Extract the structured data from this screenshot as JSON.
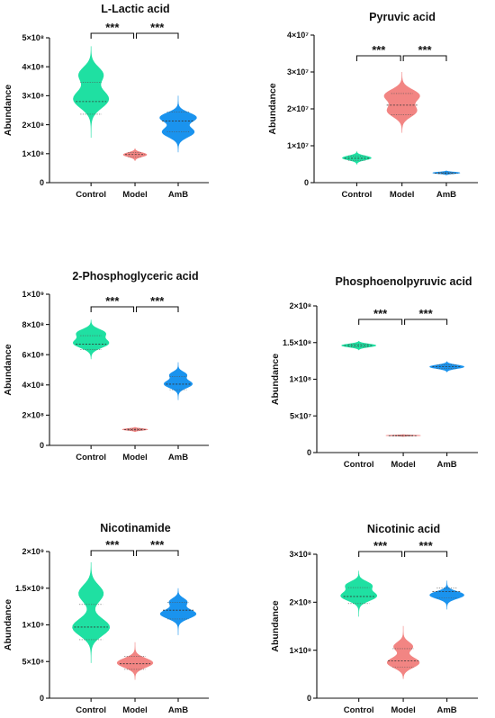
{
  "colors": {
    "control": "#1fe0a2",
    "model": "#f28583",
    "amb": "#1a93ee"
  },
  "chart_data": [
    {
      "type": "violin",
      "title": "L-Lactic acid",
      "ylabel": "Abundance",
      "categories": [
        "Control",
        "Model",
        "AmB"
      ],
      "ylim": [
        0,
        500000000
      ],
      "ticks": [
        "0",
        "1×10⁸",
        "2×10⁸",
        "3×10⁸",
        "4×10⁸",
        "5×10⁸"
      ],
      "tick_values": [
        0,
        100000000,
        200000000,
        300000000,
        400000000,
        500000000
      ],
      "medians": [
        280000000,
        97000000,
        213000000
      ],
      "ranges": [
        [
          155000000,
          470000000
        ],
        [
          75000000,
          118000000
        ],
        [
          105000000,
          300000000
        ]
      ],
      "significance": [
        "***",
        "***"
      ]
    },
    {
      "type": "violin",
      "title": "Pyruvic acid",
      "ylabel": "Abundance",
      "categories": [
        "Control",
        "Model",
        "AmB"
      ],
      "ylim": [
        0,
        40000000
      ],
      "ticks": [
        "0",
        "1×10⁷",
        "2×10⁷",
        "3×10⁷",
        "4×10⁷"
      ],
      "tick_values": [
        0,
        10000000,
        20000000,
        30000000,
        40000000
      ],
      "medians": [
        6600000,
        21000000,
        2600000
      ],
      "ranges": [
        [
          5000000,
          8400000
        ],
        [
          13500000,
          30000000
        ],
        [
          2100000,
          3200000
        ]
      ],
      "significance": [
        "***",
        "***"
      ]
    },
    {
      "type": "violin",
      "title": "2-Phosphoglyceric acid",
      "ylabel": "Abundance",
      "categories": [
        "Control",
        "Model",
        "AmB"
      ],
      "ylim": [
        0,
        1000000000
      ],
      "ticks": [
        "0",
        "2×10⁸",
        "4×10⁸",
        "6×10⁸",
        "8×10⁸",
        "1×10⁹"
      ],
      "tick_values": [
        0,
        200000000,
        400000000,
        600000000,
        800000000,
        1000000000
      ],
      "medians": [
        670000000,
        105000000,
        405000000
      ],
      "ranges": [
        [
          570000000,
          830000000
        ],
        [
          90000000,
          120000000
        ],
        [
          300000000,
          550000000
        ]
      ],
      "significance": [
        "***",
        "***"
      ]
    },
    {
      "type": "violin",
      "title": "Phosphoenolpyruvic acid",
      "ylabel": "Abundance",
      "categories": [
        "Control",
        "Model",
        "AmB"
      ],
      "ylim": [
        0,
        200000000
      ],
      "ticks": [
        "0",
        "5×10⁷",
        "1×10⁸",
        "1.5×10⁸",
        "2×10⁸"
      ],
      "tick_values": [
        0,
        50000000,
        100000000,
        150000000,
        200000000
      ],
      "medians": [
        146000000,
        23000000,
        117000000
      ],
      "ranges": [
        [
          140000000,
          152000000
        ],
        [
          22000000,
          24500000
        ],
        [
          110000000,
          124000000
        ]
      ],
      "significance": [
        "***",
        "***"
      ]
    },
    {
      "type": "violin",
      "title": "Nicotinamide",
      "ylabel": "Abundance",
      "categories": [
        "Control",
        "Model",
        "AmB"
      ],
      "ylim": [
        0,
        2000000000
      ],
      "ticks": [
        "0",
        "5×10⁸",
        "1×10⁹",
        "1.5×10⁹",
        "2×10⁹"
      ],
      "tick_values": [
        0,
        500000000,
        1000000000,
        1500000000,
        2000000000
      ],
      "medians": [
        970000000,
        470000000,
        1200000000
      ],
      "ranges": [
        [
          480000000,
          1850000000
        ],
        [
          250000000,
          760000000
        ],
        [
          860000000,
          1500000000
        ]
      ],
      "significance": [
        "***",
        "***"
      ]
    },
    {
      "type": "violin",
      "title": "Nicotinic acid",
      "ylabel": "Abundance",
      "categories": [
        "Control",
        "Model",
        "AmB"
      ],
      "ylim": [
        0,
        300000000
      ],
      "ticks": [
        "0",
        "1×10⁸",
        "2×10⁸",
        "3×10⁸"
      ],
      "tick_values": [
        0,
        100000000,
        200000000,
        300000000
      ],
      "medians": [
        212000000,
        78000000,
        222000000
      ],
      "ranges": [
        [
          170000000,
          265000000
        ],
        [
          40000000,
          150000000
        ],
        [
          185000000,
          245000000
        ]
      ],
      "significance": [
        "***",
        "***"
      ]
    }
  ]
}
